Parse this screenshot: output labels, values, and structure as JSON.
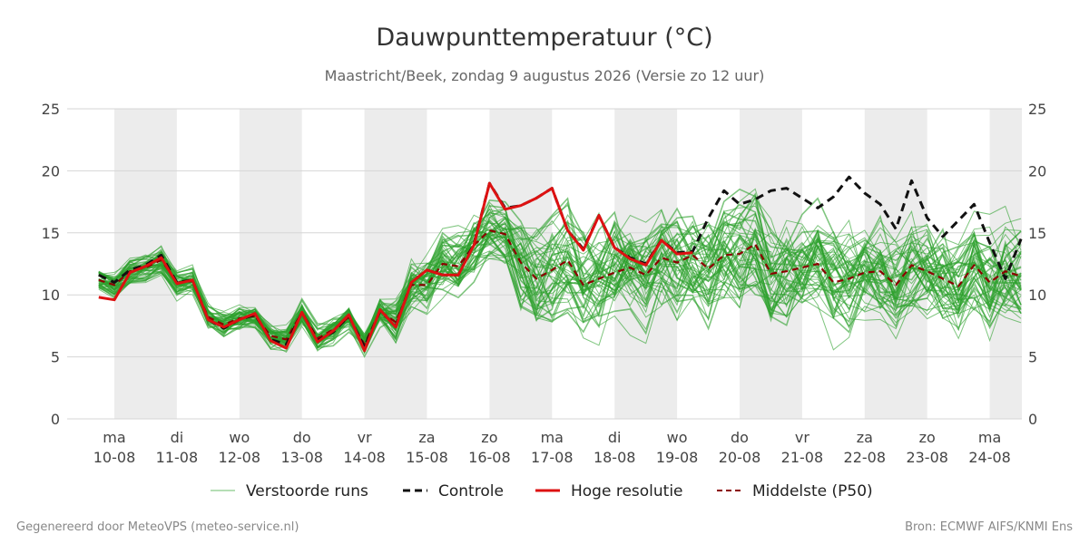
{
  "chart_data": {
    "type": "line",
    "title": "Dauwpunttemperatuur (°C)",
    "subtitle": "Maastricht/Beek, zondag  9 augustus 2026 (Versie zo 12 uur)",
    "ylim": [
      0,
      25
    ],
    "yticks": [
      0,
      5,
      10,
      15,
      20,
      25
    ],
    "xlim": [
      -0.25,
      14.5
    ],
    "x_ticks": [
      {
        "day": "ma",
        "date": "10-08"
      },
      {
        "day": "di",
        "date": "11-08"
      },
      {
        "day": "wo",
        "date": "12-08"
      },
      {
        "day": "do",
        "date": "13-08"
      },
      {
        "day": "vr",
        "date": "14-08"
      },
      {
        "day": "za",
        "date": "15-08"
      },
      {
        "day": "zo",
        "date": "16-08"
      },
      {
        "day": "ma",
        "date": "17-08"
      },
      {
        "day": "di",
        "date": "18-08"
      },
      {
        "day": "wo",
        "date": "19-08"
      },
      {
        "day": "do",
        "date": "20-08"
      },
      {
        "day": "vr",
        "date": "21-08"
      },
      {
        "day": "za",
        "date": "22-08"
      },
      {
        "day": "zo",
        "date": "23-08"
      },
      {
        "day": "ma",
        "date": "24-08"
      }
    ],
    "shaded_days": [
      0,
      2,
      4,
      6,
      8,
      10,
      12,
      14
    ],
    "grid": true,
    "x": [
      -0.25,
      0,
      0.25,
      0.5,
      0.75,
      1,
      1.25,
      1.5,
      1.75,
      2,
      2.25,
      2.5,
      2.75,
      3,
      3.25,
      3.5,
      3.75,
      4,
      4.25,
      4.5,
      4.75,
      5,
      5.25,
      5.5,
      5.75,
      6,
      6.25,
      6.5,
      6.75,
      7,
      7.25,
      7.5,
      7.75,
      8,
      8.25,
      8.5,
      8.75,
      9,
      9.25,
      9.5,
      9.75,
      10,
      10.25,
      10.5,
      10.75,
      11,
      11.25,
      11.5,
      11.75,
      12,
      12.25,
      12.5,
      12.75,
      13,
      13.25,
      13.5,
      13.75,
      14,
      14.25,
      14.5
    ],
    "series": [
      {
        "name": "Verstoorde runs",
        "color": "#2ca02c",
        "type": "ensemble"
      },
      {
        "name": "Controle",
        "color": "#111111",
        "dash": "dashed",
        "values": [
          11.6,
          11.0,
          12.0,
          12.4,
          13.2,
          11.0,
          11.2,
          8.0,
          7.3,
          8.0,
          8.4,
          6.4,
          6.0,
          8.6,
          6.3,
          7.0,
          8.3,
          5.8,
          8.7,
          7.5,
          11.0,
          12.0,
          11.6,
          11.6,
          14.1,
          19.0,
          17.0,
          17.2,
          17.8,
          18.6,
          15.2,
          13.7,
          16.4,
          13.8,
          13.0,
          12.5,
          14.4,
          13.4,
          13.5,
          16.2,
          18.4,
          17.3,
          17.7,
          18.4,
          18.6,
          17.8,
          17.0,
          17.9,
          19.5,
          18.2,
          17.3,
          15.3,
          19.2,
          16.2,
          14.7,
          16.0,
          17.3,
          14.2,
          11.3,
          14.5
        ]
      },
      {
        "name": "Hoge resolutie",
        "color": "#dd1111",
        "values": [
          9.8,
          9.6,
          11.8,
          12.3,
          13.0,
          10.9,
          11.2,
          8.0,
          7.4,
          8.0,
          8.5,
          6.3,
          5.7,
          8.6,
          6.2,
          7.1,
          8.4,
          5.5,
          8.8,
          7.4,
          11.0,
          12.0,
          11.6,
          11.6,
          14.0,
          19.0,
          16.9,
          17.2,
          17.8,
          18.6,
          15.2,
          13.6,
          16.4,
          13.8,
          12.9,
          12.4,
          14.4,
          13.3,
          13.4,
          null,
          null,
          null,
          null,
          null,
          null,
          null,
          null,
          null,
          null,
          null,
          null,
          null,
          null,
          null,
          null,
          null,
          null,
          null,
          null,
          null
        ]
      },
      {
        "name": "Middelste (P50)",
        "color": "#8b0000",
        "dash": "dashed",
        "values": [
          11.2,
          10.8,
          11.9,
          12.2,
          12.8,
          11.0,
          11.1,
          8.2,
          7.6,
          8.1,
          8.3,
          6.7,
          6.4,
          8.6,
          6.5,
          7.2,
          8.2,
          6.0,
          8.7,
          7.8,
          10.8,
          10.8,
          12.5,
          12.3,
          14.0,
          15.2,
          14.9,
          12.6,
          11.3,
          12.0,
          12.8,
          10.8,
          11.3,
          11.8,
          12.2,
          11.6,
          13.0,
          12.6,
          13.2,
          12.1,
          13.2,
          13.3,
          14.1,
          11.7,
          11.9,
          12.2,
          12.5,
          11.0,
          11.3,
          11.8,
          11.9,
          10.8,
          12.4,
          11.9,
          11.3,
          10.7,
          12.4,
          11.0,
          11.9,
          11.5
        ]
      }
    ]
  },
  "footer": {
    "left": "Gegenereerd door MeteoVPS (meteo-service.nl)",
    "right": "Bron: ECMWF AIFS/KNMI Ens"
  }
}
